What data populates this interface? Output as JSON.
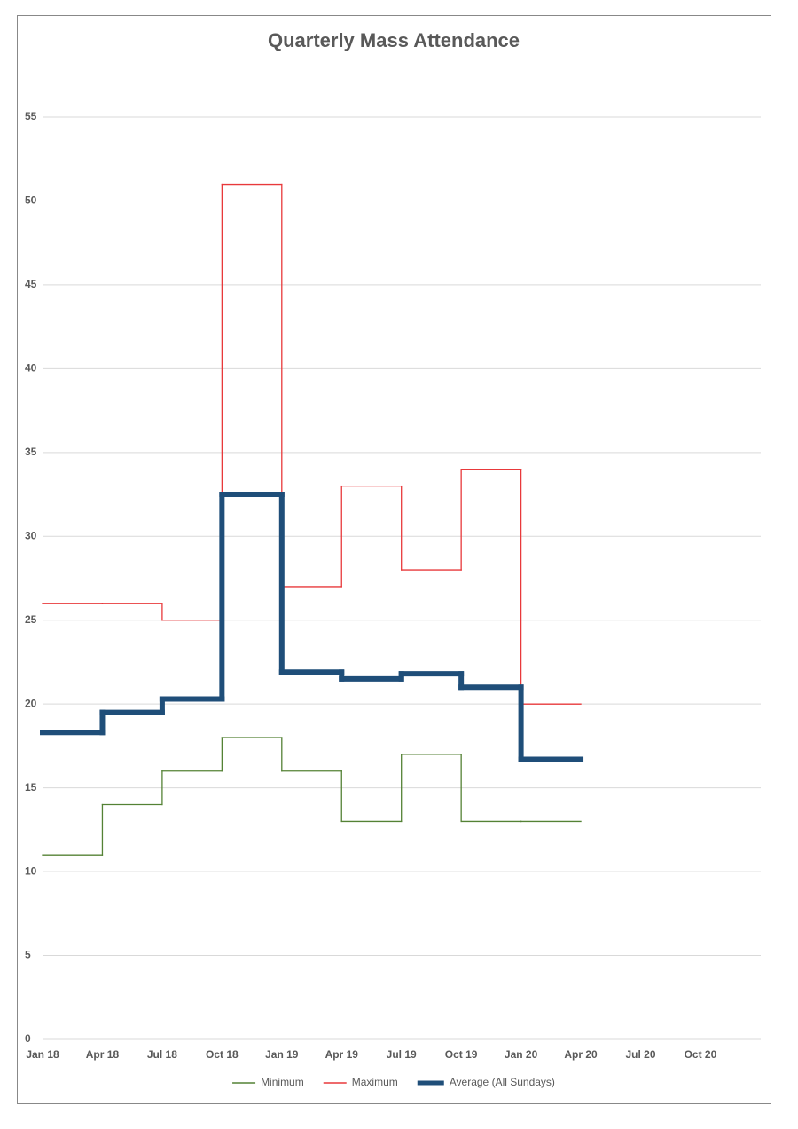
{
  "chart_data": {
    "type": "step",
    "title": "Quarterly Mass Attendance",
    "categories": [
      "Jan 18",
      "Apr 18",
      "Jul 18",
      "Oct 18",
      "Jan 19",
      "Apr 19",
      "Jul 19",
      "Oct 19",
      "Jan 20",
      "Apr 20",
      "Jul 20",
      "Oct 20"
    ],
    "series": [
      {
        "name": "Minimum",
        "color": "#548235",
        "values": [
          11,
          14,
          16,
          18,
          16,
          13,
          17,
          13,
          13,
          null,
          null,
          null
        ]
      },
      {
        "name": "Maximum",
        "color": "#e8393b",
        "values": [
          26,
          26,
          25,
          51,
          27,
          33,
          28,
          34,
          20,
          null,
          null,
          null
        ]
      },
      {
        "name": "Average (All Sundays)",
        "color": "#1f4e79",
        "values": [
          18.3,
          19.5,
          20.3,
          32.5,
          21.9,
          21.5,
          21.8,
          21.0,
          16.7,
          null,
          null,
          null
        ]
      }
    ],
    "ylim": [
      0,
      55
    ],
    "yticks": [
      0,
      5,
      10,
      15,
      20,
      25,
      30,
      35,
      40,
      45,
      50,
      55
    ],
    "grid": true,
    "legend": "bottom"
  }
}
